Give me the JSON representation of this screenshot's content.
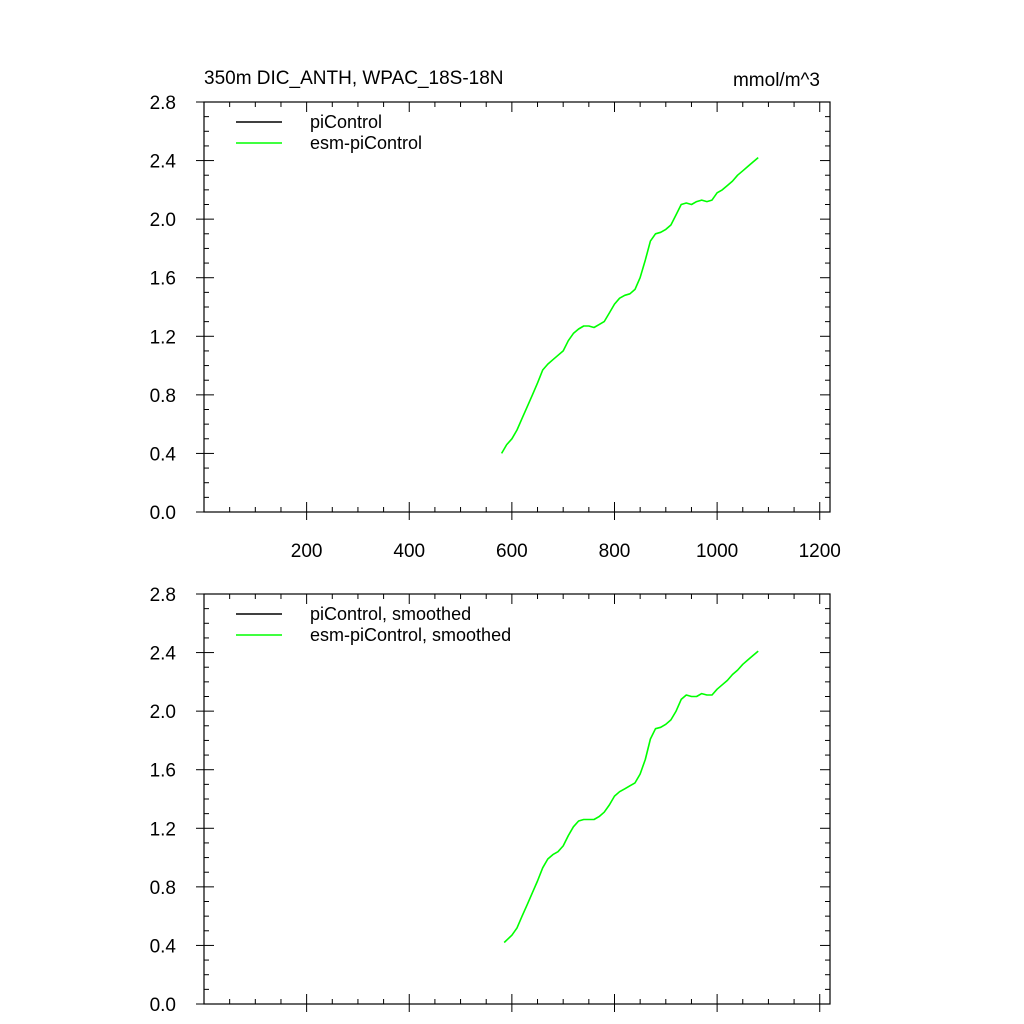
{
  "figure": {
    "title_left": "350m DIC_ANTH, WPAC_18S-18N",
    "title_right": "mmol/m^3"
  },
  "chart_data": [
    {
      "type": "line",
      "title": "350m DIC_ANTH, WPAC_18S-18N",
      "units": "mmol/m^3",
      "xlim": [
        0,
        1220
      ],
      "ylim": [
        0.0,
        2.8
      ],
      "x_ticks": [
        200,
        400,
        600,
        800,
        1000,
        1200
      ],
      "x_tick_labels": [
        "200",
        "400",
        "600",
        "800",
        "1000",
        "1200"
      ],
      "y_ticks": [
        0.0,
        0.4,
        0.8,
        1.2,
        1.6,
        2.0,
        2.4,
        2.8
      ],
      "y_tick_labels": [
        "0.0",
        "0.4",
        "0.8",
        "1.2",
        "1.6",
        "2.0",
        "2.4",
        "2.8"
      ],
      "grid": false,
      "legend_position": "top-left",
      "series": [
        {
          "name": "piControl",
          "color": "#000000",
          "x": [],
          "y": []
        },
        {
          "name": "esm-piControl",
          "color": "#00ff00",
          "x": [
            580,
            590,
            600,
            610,
            620,
            630,
            640,
            650,
            660,
            670,
            680,
            690,
            700,
            710,
            720,
            730,
            740,
            750,
            760,
            770,
            780,
            790,
            800,
            810,
            820,
            830,
            840,
            850,
            860,
            870,
            880,
            890,
            900,
            910,
            920,
            930,
            940,
            950,
            960,
            970,
            980,
            990,
            1000,
            1010,
            1020,
            1030,
            1040,
            1050,
            1060,
            1070,
            1080
          ],
          "y": [
            0.4,
            0.46,
            0.5,
            0.56,
            0.64,
            0.72,
            0.8,
            0.88,
            0.97,
            1.01,
            1.04,
            1.07,
            1.1,
            1.17,
            1.22,
            1.25,
            1.27,
            1.27,
            1.26,
            1.28,
            1.3,
            1.36,
            1.42,
            1.46,
            1.48,
            1.49,
            1.52,
            1.6,
            1.72,
            1.85,
            1.9,
            1.91,
            1.93,
            1.96,
            2.03,
            2.1,
            2.11,
            2.1,
            2.12,
            2.13,
            2.12,
            2.13,
            2.18,
            2.2,
            2.23,
            2.26,
            2.3,
            2.33,
            2.36,
            2.39,
            2.42
          ]
        }
      ]
    },
    {
      "type": "line",
      "xlim": [
        0,
        1220
      ],
      "ylim": [
        0.0,
        2.8
      ],
      "x_ticks": [
        200,
        400,
        600,
        800,
        1000,
        1200
      ],
      "y_ticks": [
        0.0,
        0.4,
        0.8,
        1.2,
        1.6,
        2.0,
        2.4,
        2.8
      ],
      "y_tick_labels": [
        "0.0",
        "0.4",
        "0.8",
        "1.2",
        "1.6",
        "2.0",
        "2.4",
        "2.8"
      ],
      "grid": false,
      "legend_position": "top-left",
      "series": [
        {
          "name": "piControl, smoothed",
          "color": "#000000",
          "x": [],
          "y": []
        },
        {
          "name": "esm-piControl, smoothed",
          "color": "#00ff00",
          "x": [
            585,
            600,
            610,
            620,
            630,
            640,
            650,
            660,
            670,
            680,
            690,
            700,
            710,
            720,
            730,
            740,
            750,
            760,
            770,
            780,
            790,
            800,
            810,
            820,
            830,
            840,
            850,
            860,
            870,
            880,
            890,
            900,
            910,
            920,
            930,
            940,
            950,
            960,
            970,
            980,
            990,
            1000,
            1010,
            1020,
            1030,
            1040,
            1050,
            1060,
            1070,
            1080
          ],
          "y": [
            0.42,
            0.47,
            0.52,
            0.6,
            0.68,
            0.76,
            0.84,
            0.93,
            0.99,
            1.02,
            1.04,
            1.08,
            1.15,
            1.21,
            1.25,
            1.26,
            1.26,
            1.26,
            1.28,
            1.31,
            1.36,
            1.42,
            1.45,
            1.47,
            1.49,
            1.51,
            1.57,
            1.67,
            1.81,
            1.88,
            1.89,
            1.91,
            1.94,
            2.0,
            2.08,
            2.11,
            2.1,
            2.1,
            2.12,
            2.11,
            2.11,
            2.15,
            2.18,
            2.21,
            2.25,
            2.28,
            2.32,
            2.35,
            2.38,
            2.41
          ]
        }
      ]
    }
  ]
}
